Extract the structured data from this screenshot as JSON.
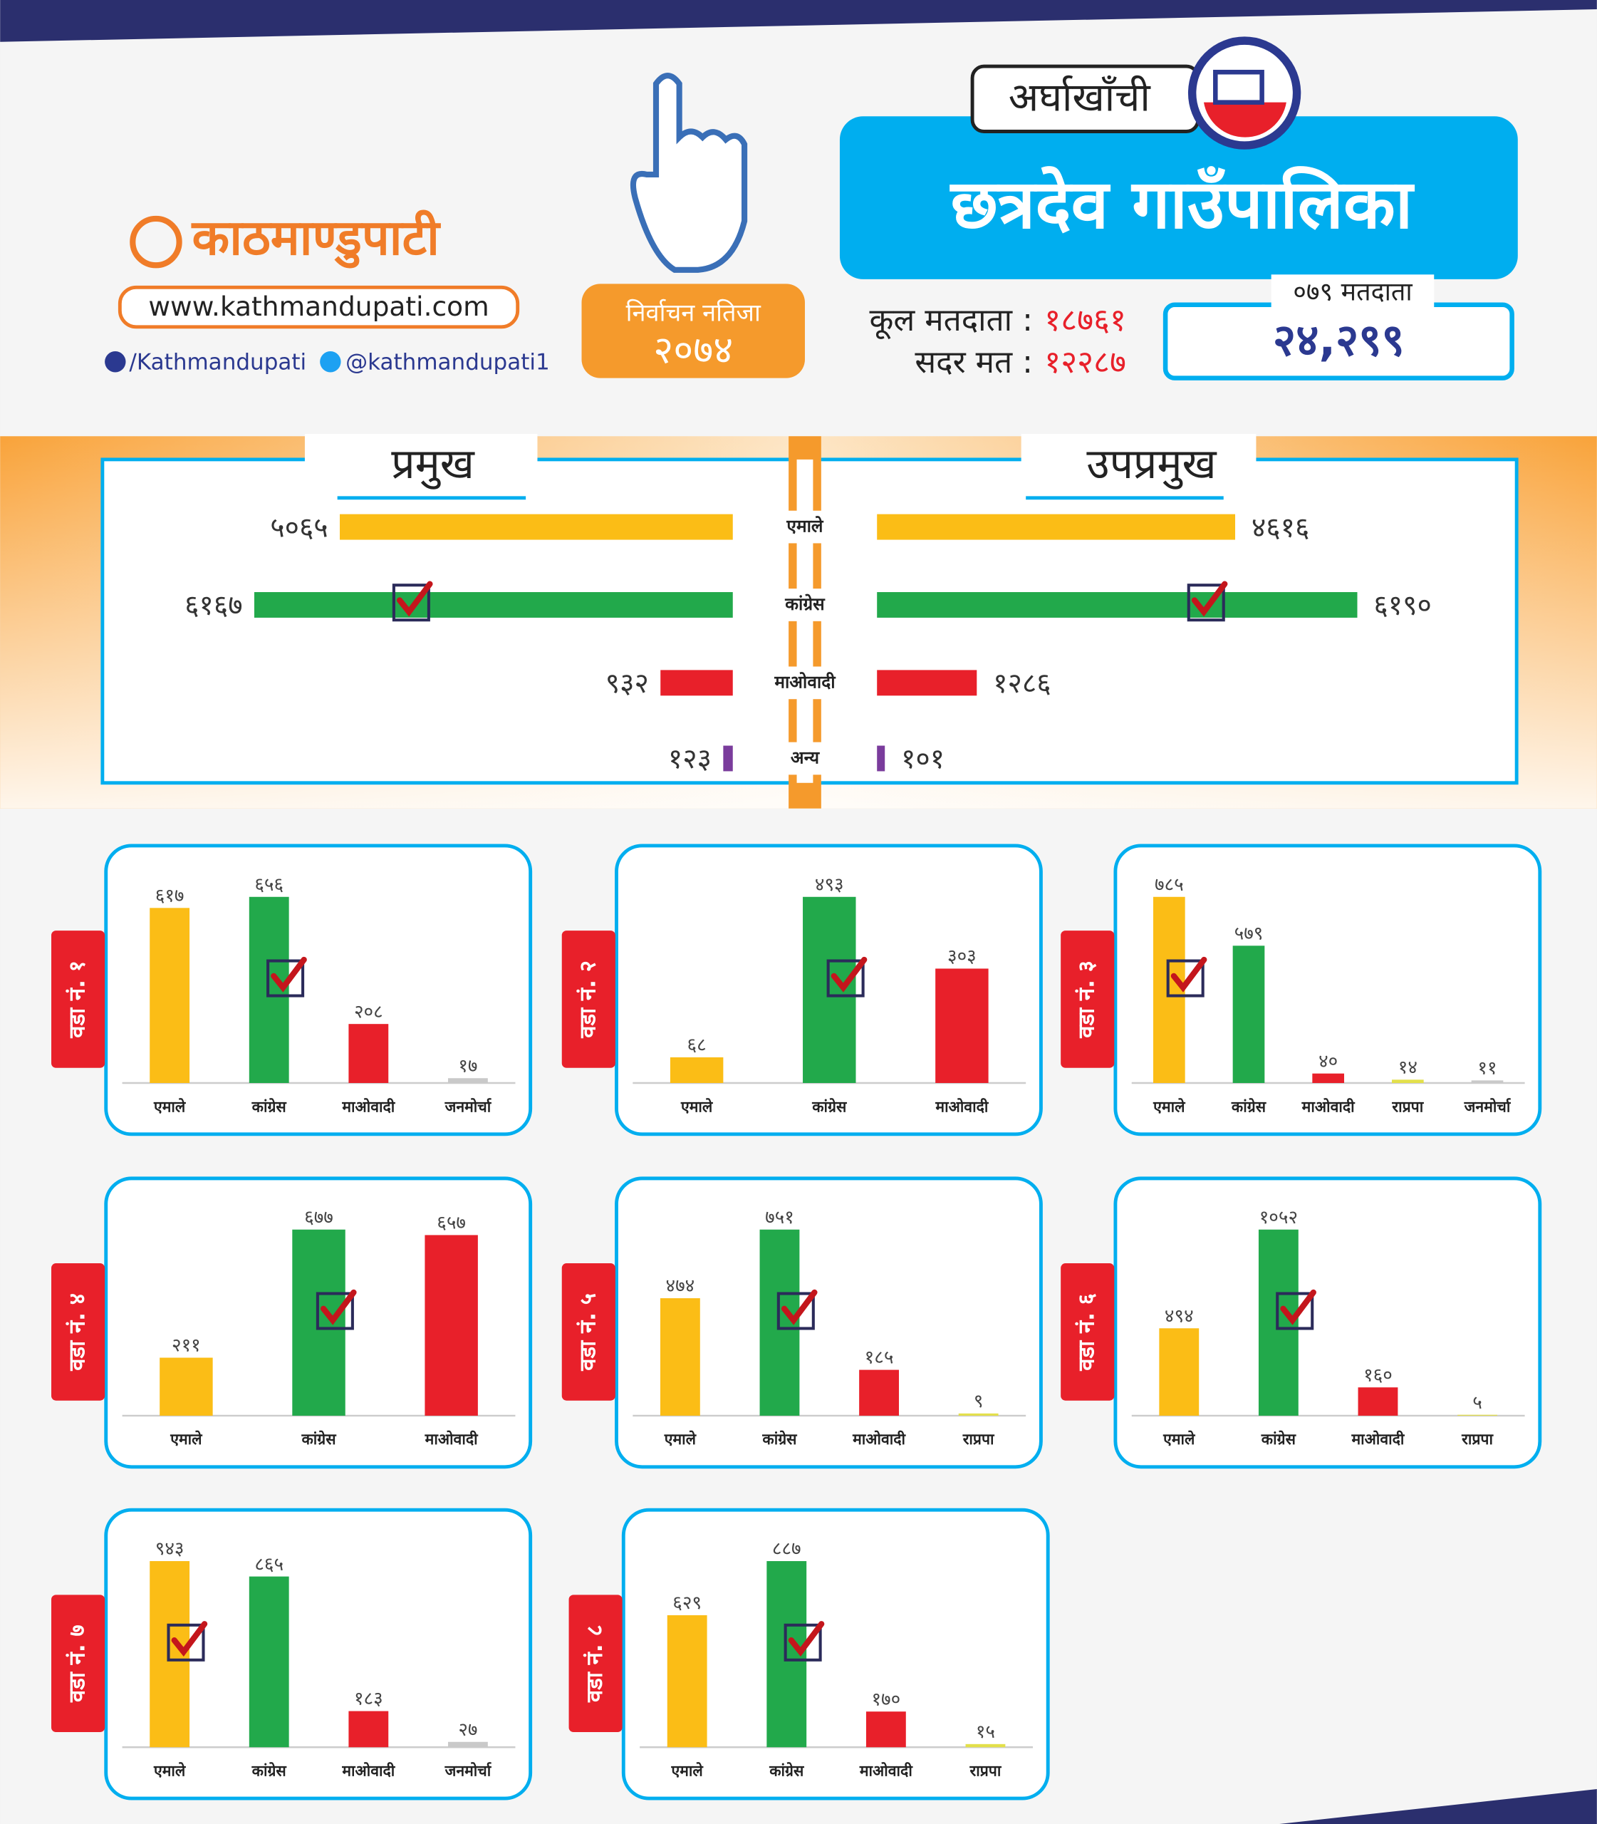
{
  "header": {
    "brand": "काठमाण्डुपाटी",
    "website": "www.kathmandupati.com",
    "facebook": "/Kathmandupati",
    "twitter": "@kathmandupati1",
    "badge_title": "निर्वाचन नतिजा",
    "badge_year": "२०७४",
    "district": "अर्घाखाँची",
    "municipality": "छत्रदेव गाउँपालिका",
    "total_voters_label": "कूल मतदाता :",
    "total_voters": "१८७६१",
    "valid_votes_label": "सदर मत :",
    "valid_votes": "१२२८७",
    "voters_079_label": "०७९ मतदाता",
    "voters_079": "२४,२९९"
  },
  "chart_data": [
    {
      "type": "butterfly",
      "categories": [
        "एमाले",
        "कांग्रेस",
        "माओवादी",
        "अन्य"
      ],
      "colors": [
        "#fbbd16",
        "#22a94b",
        "#e8202a",
        "#7a3c9c"
      ],
      "series": [
        {
          "name": "प्रमुख",
          "values": [
            5065,
            6167,
            932,
            123
          ],
          "value_labels": [
            "५०६५",
            "६१६७",
            "९३२",
            "१२३"
          ]
        },
        {
          "name": "उपप्रमुख",
          "values": [
            4616,
            6190,
            1286,
            101
          ],
          "value_labels": [
            "४६१६",
            "६१९०",
            "१२८६",
            "१०१"
          ]
        }
      ]
    },
    {
      "type": "bar",
      "title": "वडा नं. १",
      "categories": [
        "एमाले",
        "कांग्रेस",
        "माओवादी",
        "जनमोर्चा"
      ],
      "colors": [
        "#fbbd16",
        "#22a94b",
        "#e8202a",
        "#c9c9c9"
      ],
      "values": [
        617,
        656,
        208,
        17
      ],
      "value_labels": [
        "६१७",
        "६५६",
        "२०८",
        "१७"
      ]
    },
    {
      "type": "bar",
      "title": "वडा नं. २",
      "categories": [
        "एमाले",
        "कांग्रेस",
        "माओवादी"
      ],
      "colors": [
        "#fbbd16",
        "#22a94b",
        "#e8202a"
      ],
      "values": [
        68,
        493,
        303
      ],
      "value_labels": [
        "६८",
        "४९३",
        "३०३"
      ]
    },
    {
      "type": "bar",
      "title": "वडा नं. ३",
      "categories": [
        "एमाले",
        "कांग्रेस",
        "माओवादी",
        "राप्रपा",
        "जनमोर्चा"
      ],
      "colors": [
        "#fbbd16",
        "#22a94b",
        "#e8202a",
        "#e3e04a",
        "#c9c9c9"
      ],
      "values": [
        785,
        579,
        40,
        14,
        11
      ],
      "value_labels": [
        "७८५",
        "५७९",
        "४०",
        "१४",
        "११"
      ]
    },
    {
      "type": "bar",
      "title": "वडा नं. ४",
      "categories": [
        "एमाले",
        "कांग्रेस",
        "माओवादी"
      ],
      "colors": [
        "#fbbd16",
        "#22a94b",
        "#e8202a"
      ],
      "values": [
        211,
        677,
        657
      ],
      "value_labels": [
        "२११",
        "६७७",
        "६५७"
      ]
    },
    {
      "type": "bar",
      "title": "वडा नं. ५",
      "categories": [
        "एमाले",
        "कांग्रेस",
        "माओवादी",
        "राप्रपा"
      ],
      "colors": [
        "#fbbd16",
        "#22a94b",
        "#e8202a",
        "#e3e04a"
      ],
      "values": [
        474,
        751,
        185,
        9
      ],
      "value_labels": [
        "४७४",
        "७५१",
        "१८५",
        "९"
      ]
    },
    {
      "type": "bar",
      "title": "वडा नं. ६",
      "categories": [
        "एमाले",
        "कांग्रेस",
        "माओवादी",
        "राप्रपा"
      ],
      "colors": [
        "#fbbd16",
        "#22a94b",
        "#e8202a",
        "#e3e04a"
      ],
      "values": [
        494,
        1052,
        160,
        5
      ],
      "value_labels": [
        "४९४",
        "१०५२",
        "१६०",
        "५"
      ]
    },
    {
      "type": "bar",
      "title": "वडा नं. ७",
      "categories": [
        "एमाले",
        "कांग्रेस",
        "माओवादी",
        "जनमोर्चा"
      ],
      "colors": [
        "#fbbd16",
        "#22a94b",
        "#e8202a",
        "#c9c9c9"
      ],
      "values": [
        943,
        865,
        183,
        27
      ],
      "value_labels": [
        "९४३",
        "८६५",
        "१८३",
        "२७"
      ]
    },
    {
      "type": "bar",
      "title": "वडा नं. ८",
      "categories": [
        "एमाले",
        "कांग्रेस",
        "माओवादी",
        "राप्रपा"
      ],
      "colors": [
        "#fbbd16",
        "#22a94b",
        "#e8202a",
        "#e3e04a"
      ],
      "values": [
        629,
        887,
        170,
        15
      ],
      "value_labels": [
        "६२९",
        "८८७",
        "१७०",
        "१५"
      ]
    }
  ]
}
